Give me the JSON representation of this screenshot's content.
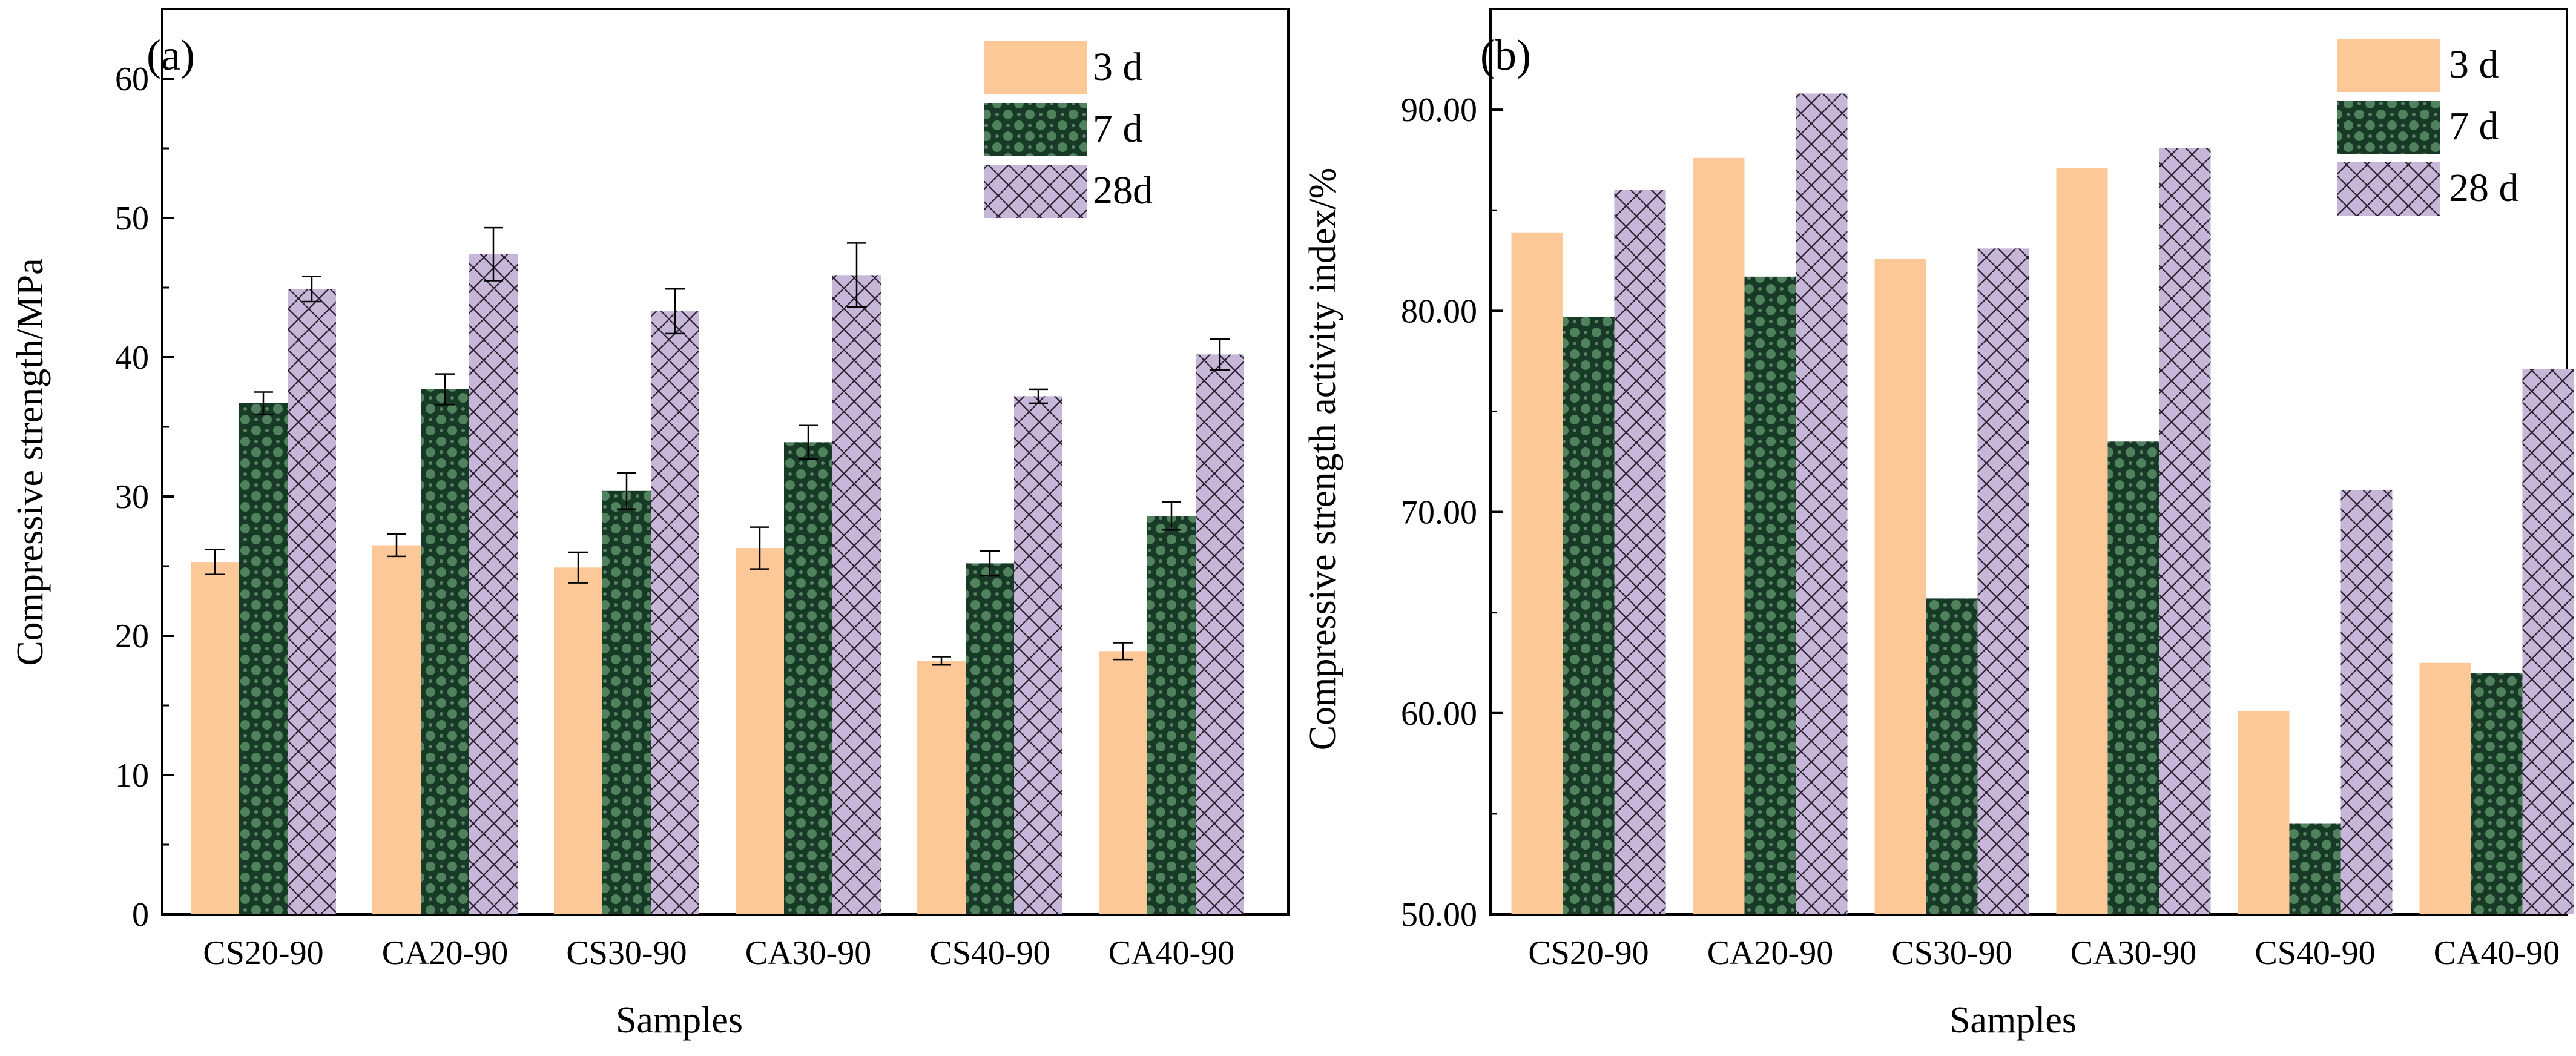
{
  "colors": {
    "d3": "#fcc898",
    "d7_base": "#173a26",
    "d7_pattern": "#5c8e67",
    "d28_base": "#c6b6d8",
    "d28_hatch": "#2a2030",
    "error_bar": "#000000"
  },
  "chart_data": [
    {
      "type": "bar",
      "panel": "(a)",
      "categories": [
        "CS20-90",
        "CA20-90",
        "CS30-90",
        "CA30-90",
        "CS40-90",
        "CA40-90"
      ],
      "series": [
        {
          "name": "3 d",
          "values": [
            25.3,
            26.5,
            24.9,
            26.3,
            18.2,
            18.9
          ],
          "errors": [
            0.9,
            0.8,
            1.1,
            1.5,
            0.3,
            0.6
          ]
        },
        {
          "name": "7 d",
          "values": [
            36.7,
            37.7,
            30.4,
            33.9,
            25.2,
            28.6
          ],
          "errors": [
            0.8,
            1.1,
            1.3,
            1.2,
            0.9,
            1.0
          ]
        },
        {
          "name": "28d",
          "values": [
            44.9,
            47.4,
            43.3,
            45.9,
            37.2,
            40.2
          ],
          "errors": [
            0.9,
            1.9,
            1.6,
            2.3,
            0.5,
            1.1
          ]
        }
      ],
      "title": "",
      "xlabel": "Samples",
      "ylabel": "Compressive strength/MPa",
      "ylim": [
        0,
        65
      ],
      "yticks": [
        0,
        10,
        20,
        30,
        40,
        50,
        60
      ],
      "ytick_labels": [
        "0",
        "10",
        "20",
        "30",
        "40",
        "50",
        "60"
      ],
      "legend": [
        "3 d",
        "7 d",
        "28d"
      ],
      "legend_position": "top-right",
      "grid": false
    },
    {
      "type": "bar",
      "panel": "(b)",
      "categories": [
        "CS20-90",
        "CA20-90",
        "CS30-90",
        "CA30-90",
        "CS40-90",
        "CA40-90"
      ],
      "series": [
        {
          "name": "3 d",
          "values": [
            83.9,
            87.6,
            82.6,
            87.1,
            60.1,
            62.5
          ]
        },
        {
          "name": "7 d",
          "values": [
            79.7,
            81.7,
            65.7,
            73.5,
            54.5,
            62.0
          ]
        },
        {
          "name": "28 d",
          "values": [
            86.0,
            90.8,
            83.1,
            88.1,
            71.1,
            77.1
          ]
        }
      ],
      "title": "",
      "xlabel": "Samples",
      "ylabel": "Compressive strength activity index/%",
      "ylim": [
        50,
        95
      ],
      "yticks": [
        50,
        60,
        70,
        80,
        90
      ],
      "ytick_labels": [
        "50.00",
        "60.00",
        "70.00",
        "80.00",
        "90.00"
      ],
      "legend": [
        "3 d",
        "7 d",
        "28 d"
      ],
      "legend_position": "top-right",
      "grid": false
    }
  ]
}
